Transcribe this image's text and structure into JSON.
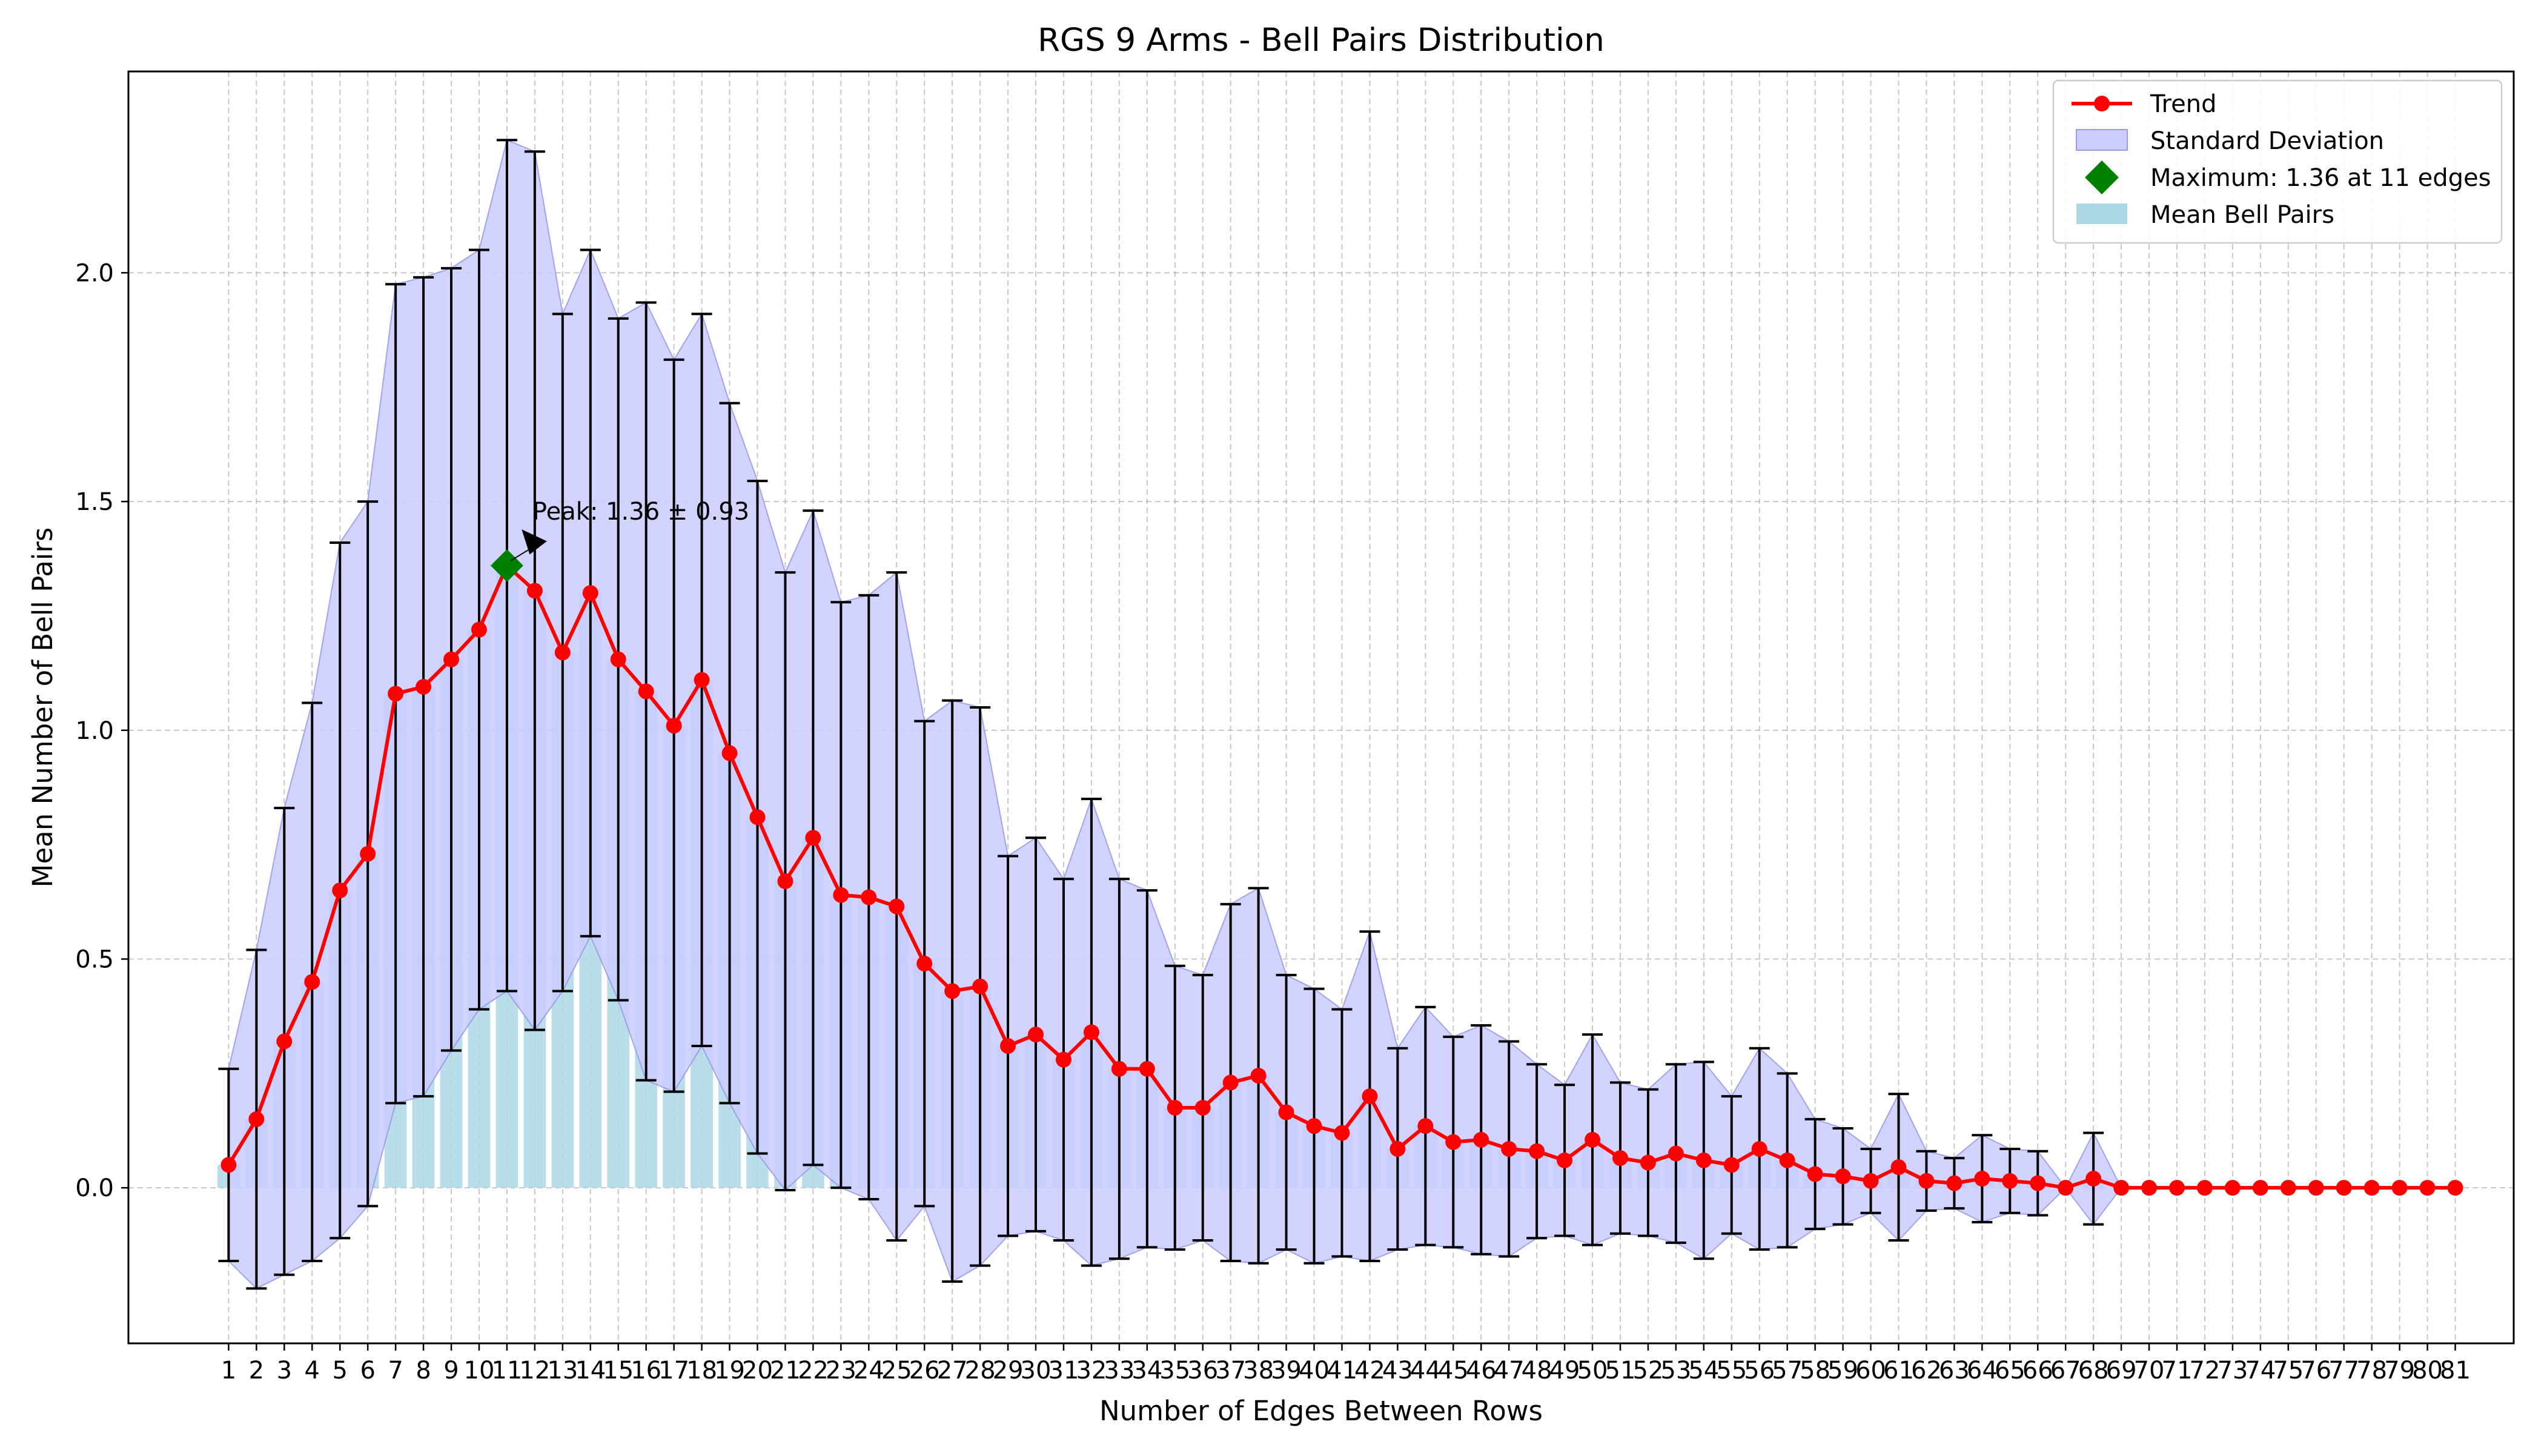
{
  "chart_data": {
    "type": "bar",
    "title": "RGS 9 Arms - Bell Pairs Distribution",
    "xlabel": "Number of Edges Between Rows",
    "ylabel": "Mean Number of Bell Pairs",
    "x": [
      1,
      2,
      3,
      4,
      5,
      6,
      7,
      8,
      9,
      10,
      11,
      12,
      13,
      14,
      15,
      16,
      17,
      18,
      19,
      20,
      21,
      22,
      23,
      24,
      25,
      26,
      27,
      28,
      29,
      30,
      31,
      32,
      33,
      34,
      35,
      36,
      37,
      38,
      39,
      40,
      41,
      42,
      43,
      44,
      45,
      46,
      47,
      48,
      49,
      50,
      51,
      52,
      53,
      54,
      55,
      56,
      57,
      58,
      59,
      60,
      61,
      62,
      63,
      64,
      65,
      66,
      67,
      68,
      69,
      70,
      71,
      72,
      73,
      74,
      75,
      76,
      77,
      78,
      79,
      80,
      81
    ],
    "mean": [
      0.05,
      0.15,
      0.32,
      0.45,
      0.65,
      0.73,
      1.08,
      1.095,
      1.155,
      1.22,
      1.36,
      1.305,
      1.17,
      1.3,
      1.155,
      1.085,
      1.01,
      1.11,
      0.95,
      0.81,
      0.67,
      0.765,
      0.64,
      0.635,
      0.615,
      0.49,
      0.43,
      0.44,
      0.31,
      0.335,
      0.28,
      0.34,
      0.26,
      0.26,
      0.175,
      0.175,
      0.23,
      0.245,
      0.165,
      0.135,
      0.12,
      0.2,
      0.085,
      0.135,
      0.1,
      0.105,
      0.085,
      0.08,
      0.06,
      0.105,
      0.065,
      0.055,
      0.075,
      0.06,
      0.05,
      0.085,
      0.06,
      0.03,
      0.025,
      0.015,
      0.045,
      0.015,
      0.01,
      0.02,
      0.015,
      0.01,
      0.0,
      0.02,
      0.0,
      0.0,
      0.0,
      0.0,
      0.0,
      0.0,
      0.0,
      0.0,
      0.0,
      0.0,
      0.0,
      0.0,
      0.0
    ],
    "std": [
      0.21,
      0.37,
      0.51,
      0.61,
      0.76,
      0.77,
      0.895,
      0.895,
      0.855,
      0.83,
      0.93,
      0.96,
      0.74,
      0.75,
      0.745,
      0.85,
      0.8,
      0.8,
      0.765,
      0.735,
      0.675,
      0.715,
      0.64,
      0.66,
      0.73,
      0.53,
      0.635,
      0.61,
      0.415,
      0.43,
      0.395,
      0.51,
      0.415,
      0.39,
      0.31,
      0.29,
      0.39,
      0.41,
      0.3,
      0.3,
      0.27,
      0.36,
      0.22,
      0.26,
      0.23,
      0.25,
      0.235,
      0.19,
      0.165,
      0.23,
      0.165,
      0.16,
      0.195,
      0.215,
      0.15,
      0.22,
      0.19,
      0.12,
      0.105,
      0.07,
      0.16,
      0.065,
      0.055,
      0.095,
      0.07,
      0.07,
      0.0,
      0.1,
      0.0,
      0.0,
      0.0,
      0.0,
      0.0,
      0.0,
      0.0,
      0.0,
      0.0,
      0.0,
      0.0,
      0.0,
      0.0
    ],
    "ylim": [
      -0.34,
      2.44
    ],
    "yticks": [
      "0.0",
      "0.5",
      "1.0",
      "1.5",
      "2.0"
    ],
    "grid": true,
    "legend_placement": "top-right",
    "legend": [
      "Trend",
      "Standard Deviation",
      "Maximum: 1.36 at 11 edges",
      "Mean Bell Pairs"
    ],
    "annotation": "Peak: 1.36 ± 0.93",
    "peak": {
      "x": 11,
      "y": 1.36
    },
    "colors": {
      "trend": "#ff0000",
      "std_fill": "#ccccff",
      "std_edge": "#9999ee",
      "bars": "#add8e6",
      "errorbars": "#000000",
      "maximum": "#008000",
      "grid": "#b0b0b0"
    }
  }
}
